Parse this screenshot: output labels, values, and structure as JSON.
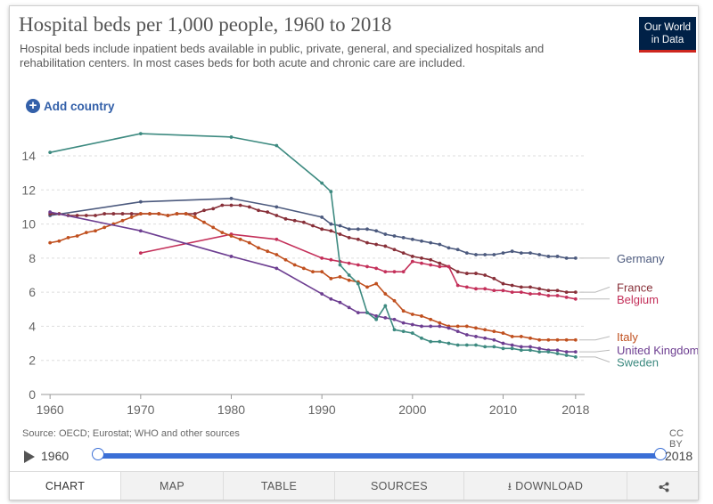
{
  "header": {
    "title": "Hospital beds per 1,000 people, 1960 to 2018",
    "subtitle": "Hospital beds include inpatient beds available in public, private, general, and specialized hospitals and rehabilitation centers. In most cases beds for both acute and chronic care are included.",
    "logo_line1": "Our World",
    "logo_line2": "in Data"
  },
  "controls": {
    "add_country_label": "Add country",
    "plus_icon": "plus-circle-icon"
  },
  "footer": {
    "source": "Source: OECD; Eurostat; WHO and other sources",
    "license": "CC BY"
  },
  "timeline": {
    "start_label": "1960",
    "end_label": "2018",
    "play_icon": "play-icon"
  },
  "tabs": [
    {
      "label": "CHART",
      "active": true
    },
    {
      "label": "MAP"
    },
    {
      "label": "TABLE"
    },
    {
      "label": "SOURCES"
    },
    {
      "label": "DOWNLOAD",
      "icon": "download-icon"
    },
    {
      "label": "",
      "icon": "share-icon"
    }
  ],
  "chart_data": {
    "type": "line",
    "title": "Hospital beds per 1,000 people, 1960 to 2018",
    "xlim": [
      1959,
      2019
    ],
    "ylim": [
      0,
      14
    ],
    "xticks": [
      1960,
      1970,
      1980,
      1990,
      2000,
      2010,
      2018
    ],
    "yticks": [
      0,
      2,
      4,
      6,
      8,
      10,
      12,
      14
    ],
    "grid": "horizontal",
    "legend": "right, inline labels",
    "series": [
      {
        "name": "Germany",
        "color": "#4c5a7e",
        "points": [
          [
            1960,
            10.5
          ],
          [
            1970,
            11.3
          ],
          [
            1980,
            11.5
          ],
          [
            1985,
            11.0
          ],
          [
            1990,
            10.4
          ],
          [
            1991,
            10.0
          ],
          [
            1992,
            9.9
          ],
          [
            1993,
            9.7
          ],
          [
            1994,
            9.7
          ],
          [
            1995,
            9.7
          ],
          [
            1996,
            9.6
          ],
          [
            1997,
            9.4
          ],
          [
            1998,
            9.3
          ],
          [
            1999,
            9.2
          ],
          [
            2000,
            9.1
          ],
          [
            2001,
            9.0
          ],
          [
            2002,
            8.9
          ],
          [
            2003,
            8.8
          ],
          [
            2004,
            8.6
          ],
          [
            2005,
            8.5
          ],
          [
            2006,
            8.3
          ],
          [
            2007,
            8.2
          ],
          [
            2008,
            8.2
          ],
          [
            2009,
            8.2
          ],
          [
            2010,
            8.3
          ],
          [
            2011,
            8.4
          ],
          [
            2012,
            8.3
          ],
          [
            2013,
            8.3
          ],
          [
            2014,
            8.2
          ],
          [
            2015,
            8.1
          ],
          [
            2016,
            8.1
          ],
          [
            2017,
            8.0
          ],
          [
            2018,
            8.0
          ]
        ]
      },
      {
        "name": "France",
        "color": "#883039",
        "points": [
          [
            1960,
            10.6
          ],
          [
            1961,
            10.6
          ],
          [
            1962,
            10.5
          ],
          [
            1963,
            10.5
          ],
          [
            1964,
            10.5
          ],
          [
            1965,
            10.5
          ],
          [
            1966,
            10.6
          ],
          [
            1967,
            10.6
          ],
          [
            1968,
            10.6
          ],
          [
            1969,
            10.6
          ],
          [
            1970,
            10.6
          ],
          [
            1971,
            10.6
          ],
          [
            1972,
            10.6
          ],
          [
            1973,
            10.5
          ],
          [
            1974,
            10.6
          ],
          [
            1975,
            10.6
          ],
          [
            1976,
            10.6
          ],
          [
            1977,
            10.8
          ],
          [
            1978,
            10.9
          ],
          [
            1979,
            11.1
          ],
          [
            1980,
            11.1
          ],
          [
            1981,
            11.1
          ],
          [
            1982,
            11.0
          ],
          [
            1983,
            10.8
          ],
          [
            1984,
            10.7
          ],
          [
            1985,
            10.5
          ],
          [
            1986,
            10.3
          ],
          [
            1987,
            10.2
          ],
          [
            1988,
            10.1
          ],
          [
            1989,
            9.9
          ],
          [
            1990,
            9.7
          ],
          [
            1991,
            9.6
          ],
          [
            1992,
            9.4
          ],
          [
            1993,
            9.2
          ],
          [
            1994,
            9.1
          ],
          [
            1995,
            8.9
          ],
          [
            1996,
            8.8
          ],
          [
            1997,
            8.7
          ],
          [
            1998,
            8.5
          ],
          [
            1999,
            8.3
          ],
          [
            2000,
            8.1
          ],
          [
            2001,
            8.0
          ],
          [
            2002,
            7.9
          ],
          [
            2003,
            7.7
          ],
          [
            2004,
            7.5
          ],
          [
            2005,
            7.2
          ],
          [
            2006,
            7.1
          ],
          [
            2007,
            7.1
          ],
          [
            2008,
            7.0
          ],
          [
            2009,
            6.8
          ],
          [
            2010,
            6.5
          ],
          [
            2011,
            6.4
          ],
          [
            2012,
            6.3
          ],
          [
            2013,
            6.3
          ],
          [
            2014,
            6.2
          ],
          [
            2015,
            6.1
          ],
          [
            2016,
            6.1
          ],
          [
            2017,
            6.0
          ],
          [
            2018,
            6.0
          ]
        ]
      },
      {
        "name": "Belgium",
        "color": "#c4305a",
        "points": [
          [
            1970,
            8.3
          ],
          [
            1980,
            9.4
          ],
          [
            1985,
            9.1
          ],
          [
            1990,
            8.0
          ],
          [
            1991,
            7.9
          ],
          [
            1992,
            7.8
          ],
          [
            1993,
            7.7
          ],
          [
            1994,
            7.6
          ],
          [
            1995,
            7.5
          ],
          [
            1996,
            7.4
          ],
          [
            1997,
            7.2
          ],
          [
            1998,
            7.2
          ],
          [
            1999,
            7.2
          ],
          [
            2000,
            7.8
          ],
          [
            2001,
            7.7
          ],
          [
            2002,
            7.6
          ],
          [
            2003,
            7.5
          ],
          [
            2004,
            7.5
          ],
          [
            2005,
            6.4
          ],
          [
            2006,
            6.3
          ],
          [
            2007,
            6.2
          ],
          [
            2008,
            6.2
          ],
          [
            2009,
            6.1
          ],
          [
            2010,
            6.1
          ],
          [
            2011,
            6.0
          ],
          [
            2012,
            6.0
          ],
          [
            2013,
            5.9
          ],
          [
            2014,
            5.9
          ],
          [
            2015,
            5.8
          ],
          [
            2016,
            5.8
          ],
          [
            2017,
            5.7
          ],
          [
            2018,
            5.6
          ]
        ]
      },
      {
        "name": "Italy",
        "color": "#c0501f",
        "points": [
          [
            1960,
            8.9
          ],
          [
            1961,
            9.0
          ],
          [
            1962,
            9.2
          ],
          [
            1963,
            9.3
          ],
          [
            1964,
            9.5
          ],
          [
            1965,
            9.6
          ],
          [
            1966,
            9.8
          ],
          [
            1967,
            10.0
          ],
          [
            1968,
            10.2
          ],
          [
            1969,
            10.4
          ],
          [
            1970,
            10.6
          ],
          [
            1971,
            10.6
          ],
          [
            1972,
            10.6
          ],
          [
            1973,
            10.5
          ],
          [
            1974,
            10.6
          ],
          [
            1975,
            10.6
          ],
          [
            1976,
            10.4
          ],
          [
            1977,
            10.1
          ],
          [
            1978,
            9.8
          ],
          [
            1979,
            9.5
          ],
          [
            1980,
            9.3
          ],
          [
            1981,
            9.1
          ],
          [
            1982,
            8.9
          ],
          [
            1983,
            8.6
          ],
          [
            1984,
            8.4
          ],
          [
            1985,
            8.2
          ],
          [
            1986,
            7.9
          ],
          [
            1987,
            7.6
          ],
          [
            1988,
            7.4
          ],
          [
            1989,
            7.2
          ],
          [
            1990,
            7.2
          ],
          [
            1991,
            6.8
          ],
          [
            1992,
            6.9
          ],
          [
            1993,
            6.7
          ],
          [
            1994,
            6.6
          ],
          [
            1995,
            6.3
          ],
          [
            1996,
            6.5
          ],
          [
            1997,
            5.9
          ],
          [
            1998,
            5.5
          ],
          [
            1999,
            4.9
          ],
          [
            2000,
            4.7
          ],
          [
            2001,
            4.6
          ],
          [
            2002,
            4.4
          ],
          [
            2003,
            4.2
          ],
          [
            2004,
            4.0
          ],
          [
            2005,
            4.0
          ],
          [
            2006,
            4.0
          ],
          [
            2007,
            3.9
          ],
          [
            2008,
            3.8
          ],
          [
            2009,
            3.7
          ],
          [
            2010,
            3.6
          ],
          [
            2011,
            3.4
          ],
          [
            2012,
            3.4
          ],
          [
            2013,
            3.3
          ],
          [
            2014,
            3.2
          ],
          [
            2015,
            3.2
          ],
          [
            2016,
            3.2
          ],
          [
            2017,
            3.2
          ],
          [
            2018,
            3.2
          ]
        ]
      },
      {
        "name": "United Kingdom",
        "color": "#6d3e91",
        "points": [
          [
            1960,
            10.7
          ],
          [
            1970,
            9.6
          ],
          [
            1980,
            8.1
          ],
          [
            1985,
            7.4
          ],
          [
            1990,
            5.9
          ],
          [
            1991,
            5.6
          ],
          [
            1992,
            5.4
          ],
          [
            1993,
            5.1
          ],
          [
            1994,
            4.8
          ],
          [
            1995,
            4.8
          ],
          [
            1996,
            4.6
          ],
          [
            1997,
            4.5
          ],
          [
            1998,
            4.4
          ],
          [
            1999,
            4.2
          ],
          [
            2000,
            4.1
          ],
          [
            2001,
            4.0
          ],
          [
            2002,
            4.0
          ],
          [
            2003,
            4.0
          ],
          [
            2004,
            3.9
          ],
          [
            2005,
            3.7
          ],
          [
            2006,
            3.5
          ],
          [
            2007,
            3.4
          ],
          [
            2008,
            3.3
          ],
          [
            2009,
            3.2
          ],
          [
            2010,
            3.0
          ],
          [
            2011,
            2.9
          ],
          [
            2012,
            2.8
          ],
          [
            2013,
            2.8
          ],
          [
            2014,
            2.7
          ],
          [
            2015,
            2.6
          ],
          [
            2016,
            2.6
          ],
          [
            2017,
            2.5
          ],
          [
            2018,
            2.5
          ]
        ]
      },
      {
        "name": "Sweden",
        "color": "#3d8a80",
        "points": [
          [
            1960,
            14.2
          ],
          [
            1970,
            15.3
          ],
          [
            1980,
            15.1
          ],
          [
            1985,
            14.6
          ],
          [
            1990,
            12.4
          ],
          [
            1991,
            11.9
          ],
          [
            1992,
            7.6
          ],
          [
            1993,
            7.0
          ],
          [
            1994,
            6.5
          ],
          [
            1995,
            4.8
          ],
          [
            1996,
            4.4
          ],
          [
            1997,
            5.2
          ],
          [
            1998,
            3.8
          ],
          [
            1999,
            3.7
          ],
          [
            2000,
            3.6
          ],
          [
            2001,
            3.3
          ],
          [
            2002,
            3.1
          ],
          [
            2003,
            3.1
          ],
          [
            2004,
            3.0
          ],
          [
            2005,
            2.9
          ],
          [
            2006,
            2.9
          ],
          [
            2007,
            2.9
          ],
          [
            2008,
            2.8
          ],
          [
            2009,
            2.8
          ],
          [
            2010,
            2.7
          ],
          [
            2011,
            2.7
          ],
          [
            2012,
            2.6
          ],
          [
            2013,
            2.6
          ],
          [
            2014,
            2.5
          ],
          [
            2015,
            2.5
          ],
          [
            2016,
            2.4
          ],
          [
            2017,
            2.3
          ],
          [
            2018,
            2.2
          ]
        ]
      }
    ]
  }
}
